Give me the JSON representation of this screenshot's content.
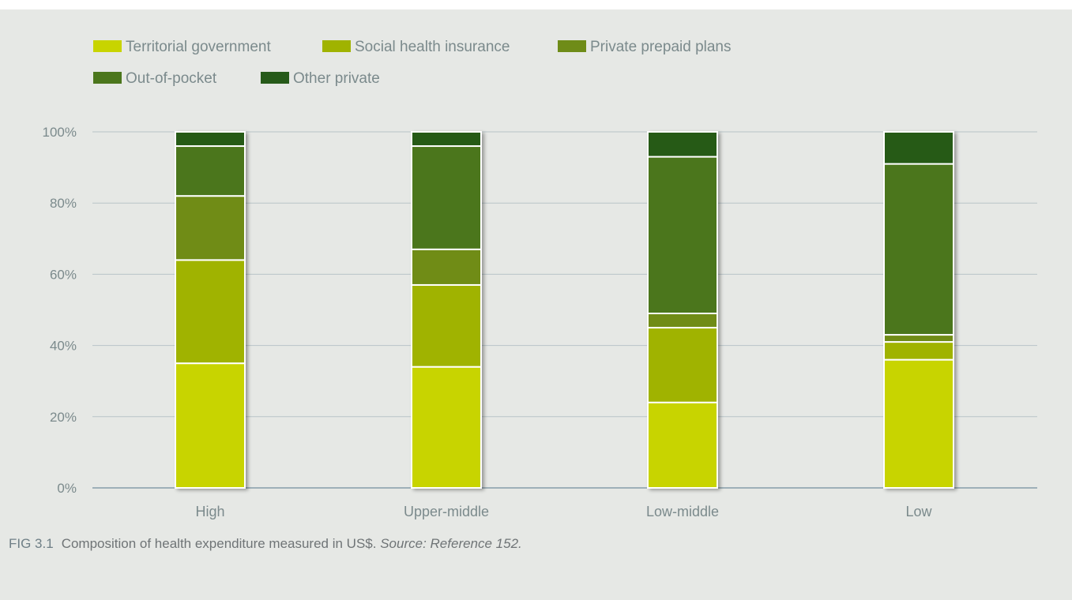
{
  "chart_data": {
    "type": "bar",
    "stacked": true,
    "percent": true,
    "categories": [
      "High",
      "Upper-middle",
      "Low-middle",
      "Low"
    ],
    "series": [
      {
        "name": "Territorial government",
        "color": "#c8d400",
        "values": [
          35,
          34,
          24,
          36
        ]
      },
      {
        "name": "Social health insurance",
        "color": "#a0b300",
        "values": [
          29,
          23,
          21,
          5
        ]
      },
      {
        "name": "Private prepaid plans",
        "color": "#6f8c18",
        "values": [
          18,
          10,
          4,
          2
        ]
      },
      {
        "name": "Out-of-pocket",
        "color": "#4b761c",
        "values": [
          14,
          29,
          44,
          48
        ]
      },
      {
        "name": "Other private",
        "color": "#265a19",
        "values": [
          4,
          4,
          7,
          9
        ]
      }
    ],
    "yticks": [
      "0%",
      "20%",
      "40%",
      "60%",
      "80%",
      "100%"
    ],
    "ylim": [
      0,
      100
    ],
    "grid": true,
    "legend_position": "top-left"
  },
  "caption": {
    "label": "FIG 3.1",
    "text": "Composition of health expenditure measured in US$.",
    "source": "Source: Reference 152."
  }
}
